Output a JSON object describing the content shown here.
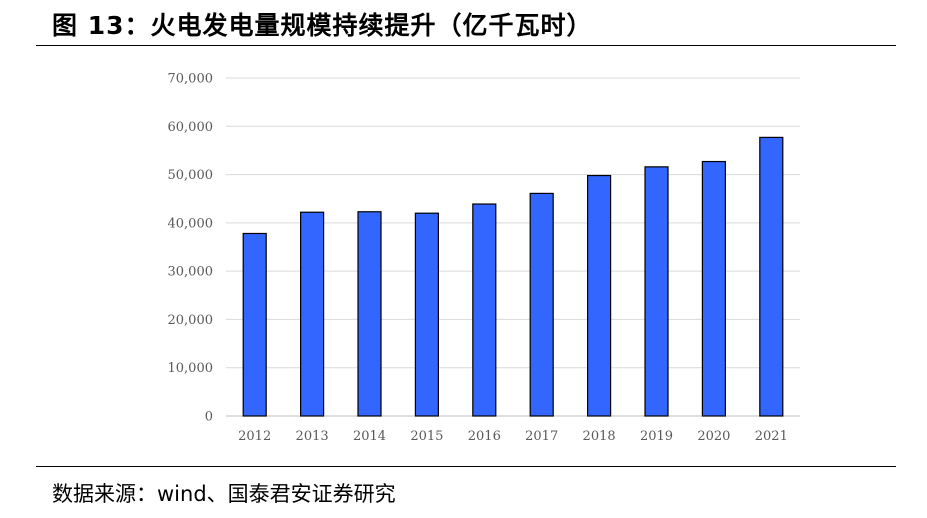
{
  "figure": {
    "title": "图 13：火电发电量规模持续提升（亿千瓦时）",
    "source": "数据来源：wind、国泰君安证券研究"
  },
  "chart_data": {
    "type": "bar",
    "title": "",
    "xlabel": "",
    "ylabel": "",
    "categories": [
      "2012",
      "2013",
      "2014",
      "2015",
      "2016",
      "2017",
      "2018",
      "2019",
      "2020",
      "2021"
    ],
    "values": [
      37800,
      42200,
      42300,
      42000,
      43900,
      46100,
      49800,
      51600,
      52700,
      57700
    ],
    "ylim": [
      0,
      70000
    ],
    "yticks": [
      0,
      10000,
      20000,
      30000,
      40000,
      50000,
      60000,
      70000
    ],
    "ytick_labels": [
      "0",
      "10,000",
      "20,000",
      "30,000",
      "40,000",
      "50,000",
      "60,000",
      "70,000"
    ],
    "grid": true,
    "legend": "none",
    "colors": {
      "bar": "#3366ff",
      "bar_edge": "#000000",
      "grid": "#d9d9d9",
      "axis": "#bfbfbf"
    }
  }
}
